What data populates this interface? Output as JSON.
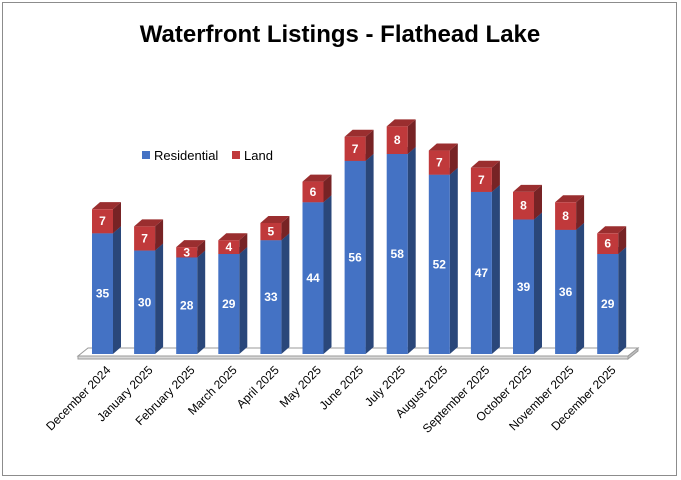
{
  "chart_data": {
    "type": "bar",
    "stacked": true,
    "style": "3d-column",
    "title": "Waterfront Listings - Flathead Lake",
    "xlabel": "",
    "ylabel": "",
    "categories": [
      "December 2024",
      "January 2025",
      "February 2025",
      "March 2025",
      "April 2025",
      "May 2025",
      "June 2025",
      "July 2025",
      "August 2025",
      "September 2025",
      "October 2025",
      "November 2025",
      "December 2025"
    ],
    "series": [
      {
        "name": "Residential",
        "color": "#4472c4",
        "values": [
          35,
          30,
          28,
          29,
          33,
          44,
          56,
          58,
          52,
          47,
          39,
          36,
          29
        ]
      },
      {
        "name": "Land",
        "color": "#c0393b",
        "values": [
          7,
          7,
          3,
          4,
          5,
          6,
          7,
          8,
          7,
          7,
          8,
          8,
          6
        ]
      }
    ],
    "ylim": [
      0,
      70
    ],
    "grid": false,
    "legend_position": "top-left",
    "data_labels": true
  }
}
